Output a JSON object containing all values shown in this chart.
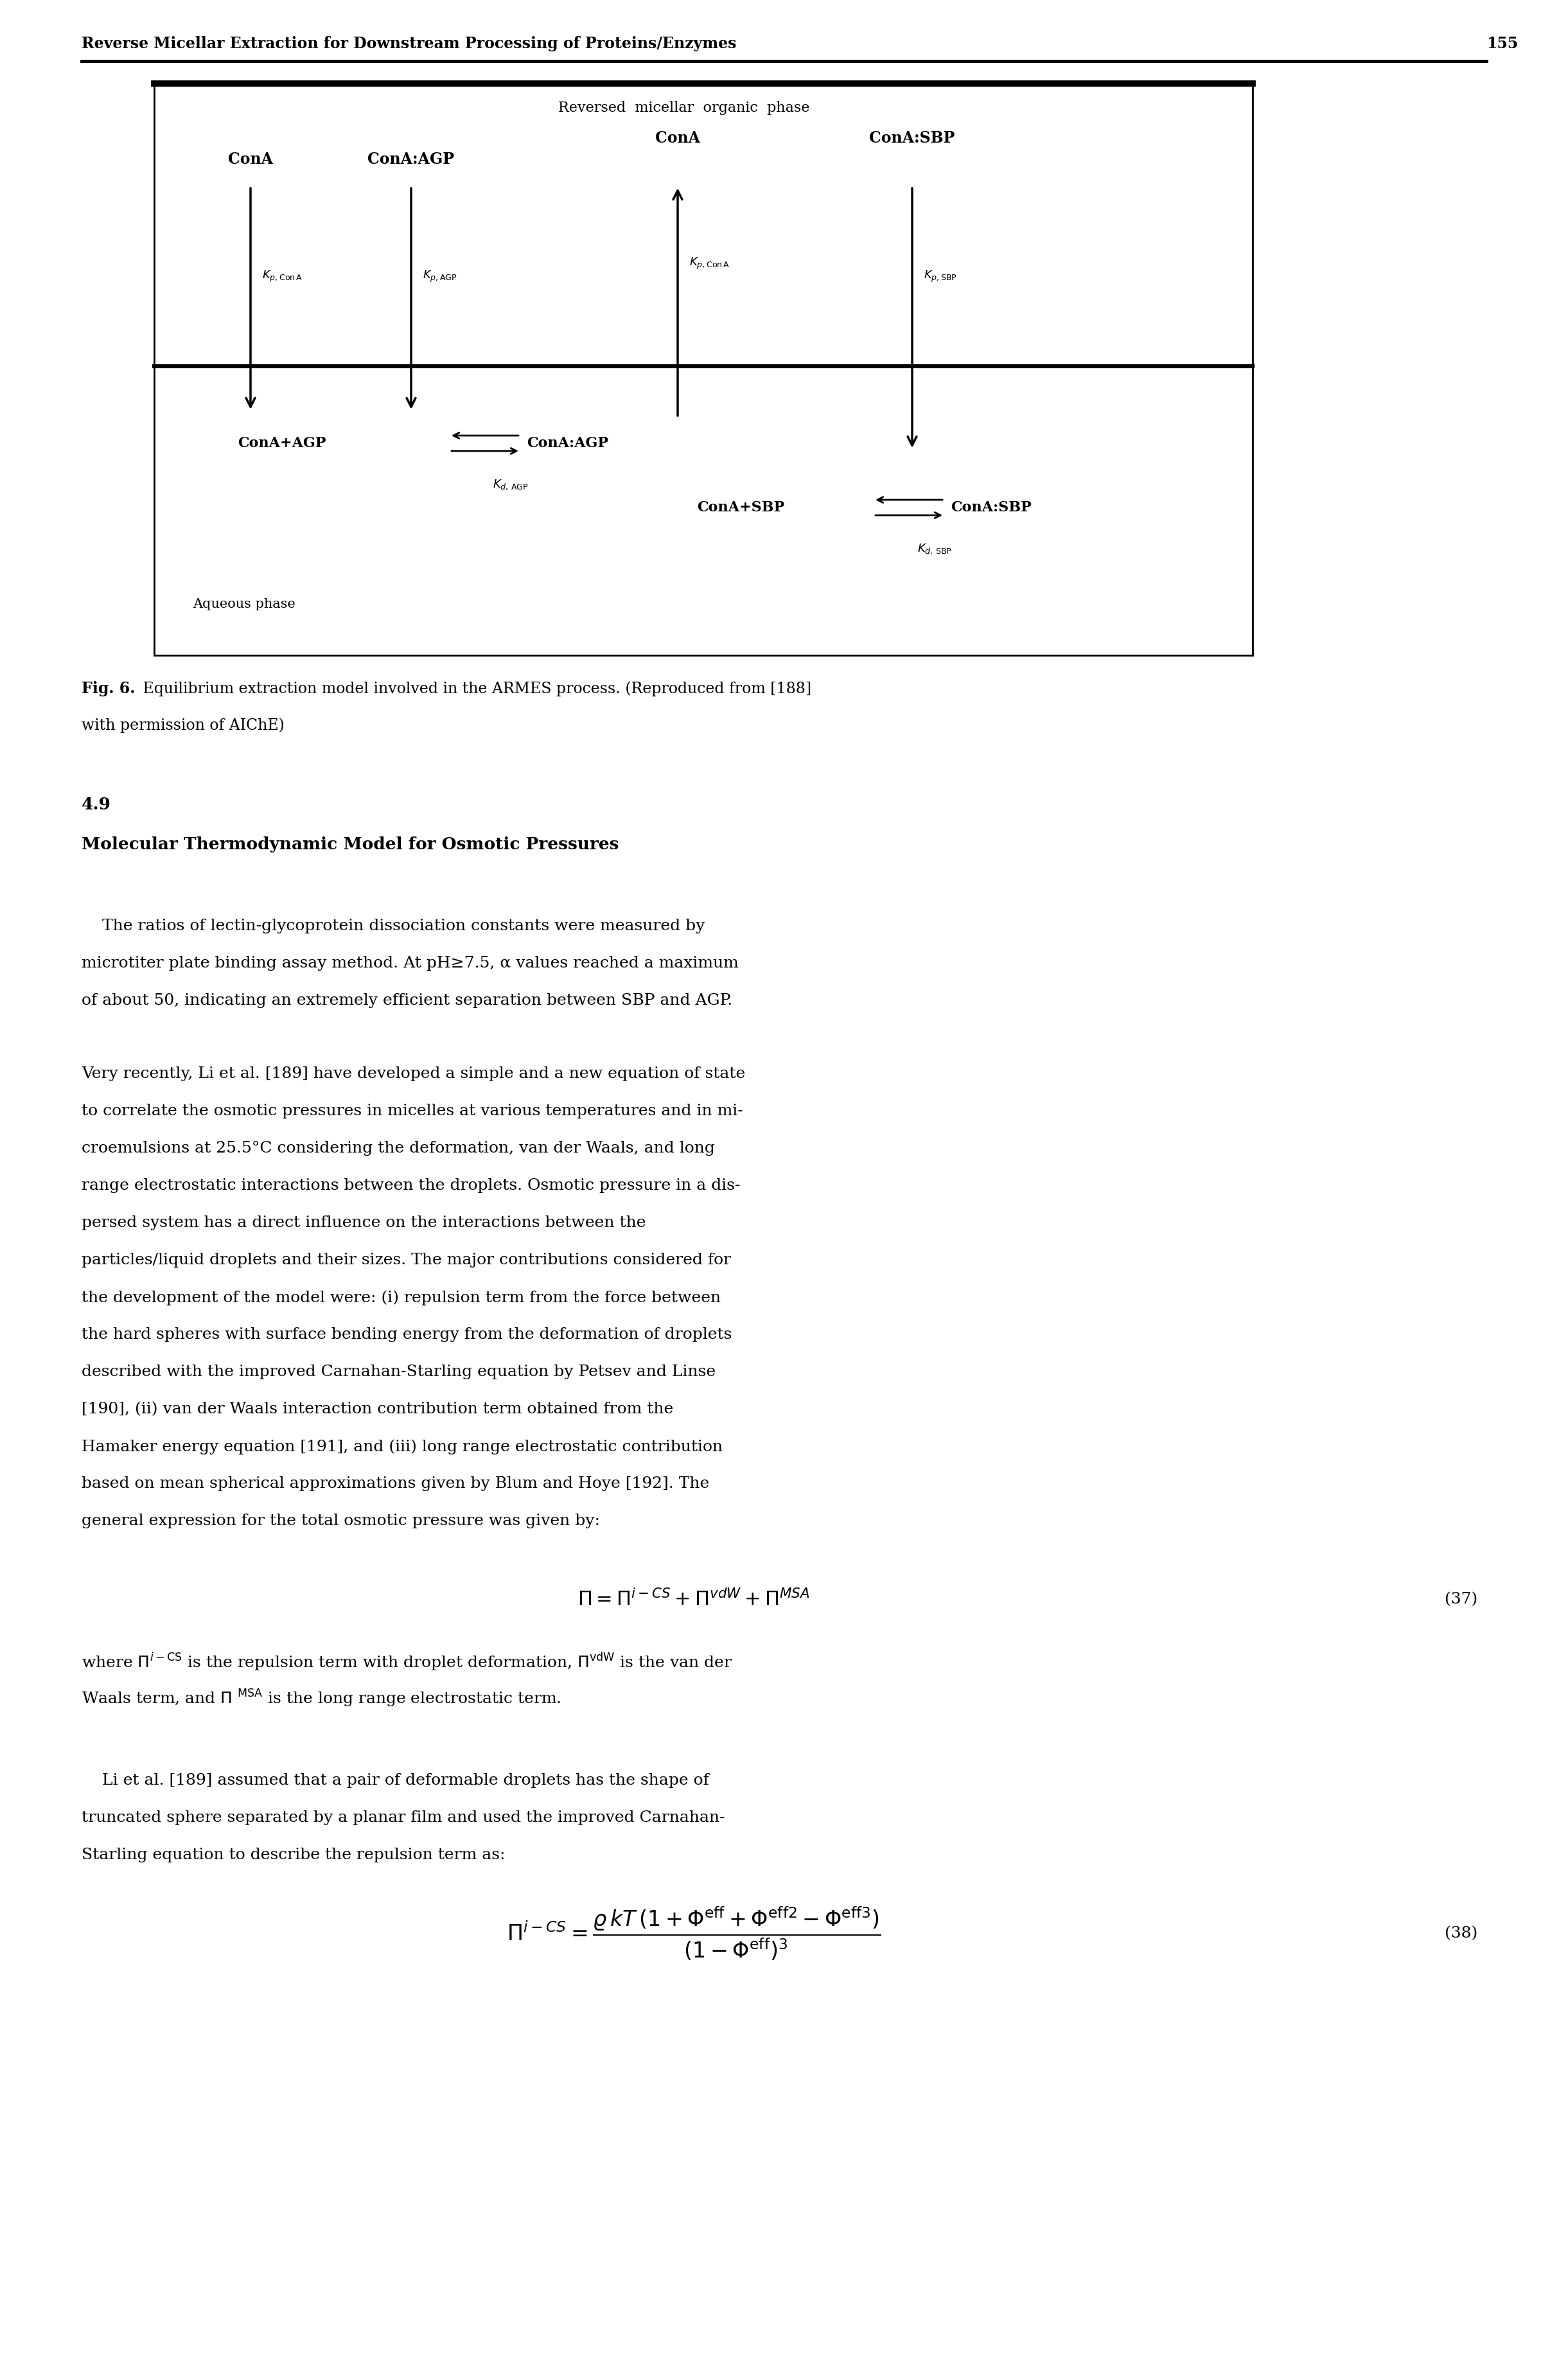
{
  "page_header": "Reverse Micellar Extraction for Downstream Processing of Proteins/Enzymes",
  "page_number": "155",
  "fig_caption_bold": "Fig. 6.",
  "fig_caption_rest": " Equilibrium extraction model involved in the ARMES process. (Reproduced from [188]",
  "fig_caption_line2": "with permission of AIChE)",
  "section_num": "4.9",
  "section_title": "Molecular Thermodynamic Model for Osmotic Pressures",
  "para1_lines": [
    "    The ratios of lectin-glycoprotein dissociation constants were measured by",
    "microtiter plate binding assay method. At pH≥7.5, α values reached a maximum",
    "of about 50, indicating an extremely efficient separation between SBP and AGP."
  ],
  "para2_lines": [
    "Very recently, Li et al. [189] have developed a simple and a new equation of state",
    "to correlate the osmotic pressures in micelles at various temperatures and in mi-",
    "croemulsions at 25.5°C considering the deformation, van der Waals, and long",
    "range electrostatic interactions between the droplets. Osmotic pressure in a dis-",
    "persed system has a direct influence on the interactions between the",
    "particles/liquid droplets and their sizes. The major contributions considered for",
    "the development of the model were: (i) repulsion term from the force between",
    "the hard spheres with surface bending energy from the deformation of droplets",
    "described with the improved Carnahan-Starling equation by Petsev and Linse",
    "[190], (ii) van der Waals interaction contribution term obtained from the",
    "Hamaker energy equation [191], and (iii) long range electrostatic contribution",
    "based on mean spherical approximations given by Blum and Hoye [192]. The",
    "general expression for the total osmotic pressure was given by:"
  ],
  "where_lines": [
    "where $\\Pi^{i-{\\rm CS}}$ is the repulsion term with droplet deformation, $\\Pi^{{\\rm vdW}}$ is the van der",
    "Waals term, and $\\Pi$ $^{{\\rm MSA}}$ is the long range electrostatic term."
  ],
  "para4_lines": [
    "    Li et al. [189] assumed that a pair of deformable droplets has the shape of",
    "truncated sphere separated by a planar film and used the improved Carnahan-",
    "Starling equation to describe the repulsion term as:"
  ],
  "eq37_label": "(37)",
  "eq38_label": "(38)",
  "background_color": "#ffffff",
  "text_color": "#000000"
}
